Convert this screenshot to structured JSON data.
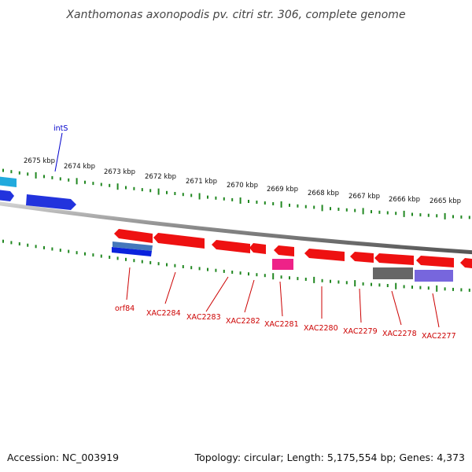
{
  "title": "Xanthomonas axonopodis pv. citri str. 306, complete genome",
  "footer": {
    "accession": "Accession: NC_003919",
    "summary": "Topology: circular; Length: 5,175,554 bp; Genes: 4,373"
  },
  "colors": {
    "forward_gene": "#2233dd",
    "forward_gene_cyan": "#22aadd",
    "reverse_gene": "#ee1111",
    "gene_label": "#cc0000",
    "fwd_label": "#0000cc",
    "tick": "#228822",
    "backbone": "#888888",
    "orf84_box": "#4477bb",
    "xac2281_box": "#ee2288",
    "xac2278_box": "#666666",
    "xac2277_box": "#7766dd"
  },
  "kbp_labels": [
    "2675 kbp",
    "2674 kbp",
    "2673 kbp",
    "2672 kbp",
    "2671 kbp",
    "2670 kbp",
    "2669 kbp",
    "2668 kbp",
    "2667 kbp",
    "2666 kbp",
    "2665 kbp"
  ],
  "forward_labels": [
    "intS"
  ],
  "reverse_labels": [
    "orf84",
    "XAC2284",
    "XAC2283",
    "XAC2282",
    "XAC2281",
    "XAC2280",
    "XAC2279",
    "XAC2278",
    "XAC2277"
  ]
}
